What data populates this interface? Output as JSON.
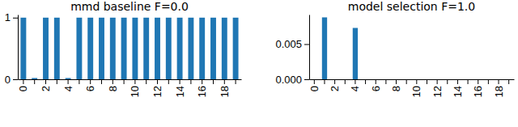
{
  "chart_data": [
    {
      "type": "bar",
      "title": "mmd baseline F=0.0",
      "categories": [
        "0",
        null,
        "2",
        null,
        "4",
        null,
        "6",
        null,
        "8",
        null,
        "10",
        null,
        "12",
        null,
        "14",
        null,
        "16",
        null,
        "18",
        null
      ],
      "values": [
        1,
        0.02,
        1,
        1,
        0.02,
        1,
        1,
        1,
        1,
        1,
        1,
        1,
        1,
        1,
        1,
        1,
        1,
        1,
        1,
        1
      ],
      "color": "#1f77b4",
      "ylim": [
        0,
        1.05
      ],
      "yticks": [
        0,
        1
      ],
      "grid": false
    },
    {
      "type": "bar",
      "title": "model selection F=1.0",
      "categories": [
        "0",
        null,
        "2",
        null,
        "4",
        null,
        "6",
        null,
        "8",
        null,
        "10",
        null,
        "12",
        null,
        "14",
        null,
        "16",
        null,
        "18",
        null
      ],
      "values": [
        0,
        0.0088,
        0,
        0,
        0.0073,
        0,
        0,
        0,
        0,
        0,
        0,
        0,
        0,
        0,
        0,
        0,
        0,
        0,
        0,
        0
      ],
      "color": "#1f77b4",
      "ylim": [
        0,
        0.0092
      ],
      "yticks": [
        {
          "value": 0,
          "label": "0.000"
        },
        {
          "value": 0.005,
          "label": "0.005"
        }
      ],
      "grid": false
    }
  ]
}
